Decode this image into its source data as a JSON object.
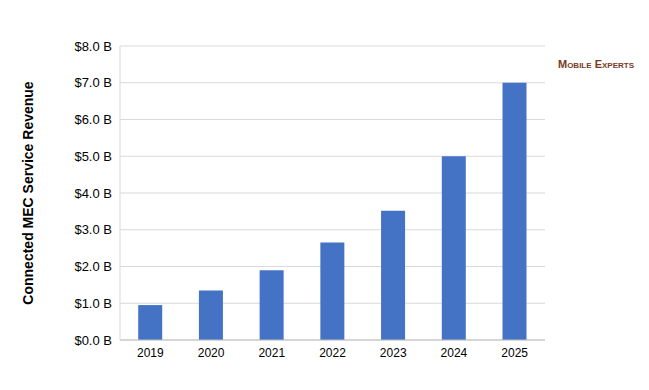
{
  "chart_data": {
    "type": "bar",
    "y_label": "Connected MEC Service Revenue",
    "annotations": [
      "Mobile Experts"
    ],
    "categories": [
      "2019",
      "2020",
      "2021",
      "2022",
      "2023",
      "2024",
      "2025"
    ],
    "values": [
      0.95,
      1.35,
      1.9,
      2.65,
      3.52,
      5.0,
      7.0
    ],
    "color": "#4472c4",
    "ylim": [
      0,
      8
    ],
    "yticks": [
      {
        "value": 0,
        "label": "$0.0 B"
      },
      {
        "value": 1,
        "label": "$1.0 B"
      },
      {
        "value": 2,
        "label": "$2.0 B"
      },
      {
        "value": 3,
        "label": "$3.0 B"
      },
      {
        "value": 4,
        "label": "$4.0 B"
      },
      {
        "value": 5,
        "label": "$5.0 B"
      },
      {
        "value": 6,
        "label": "$6.0 B"
      },
      {
        "value": 7,
        "label": "$7.0 B"
      },
      {
        "value": 8,
        "label": "$8.0 B"
      }
    ],
    "grid": true
  }
}
